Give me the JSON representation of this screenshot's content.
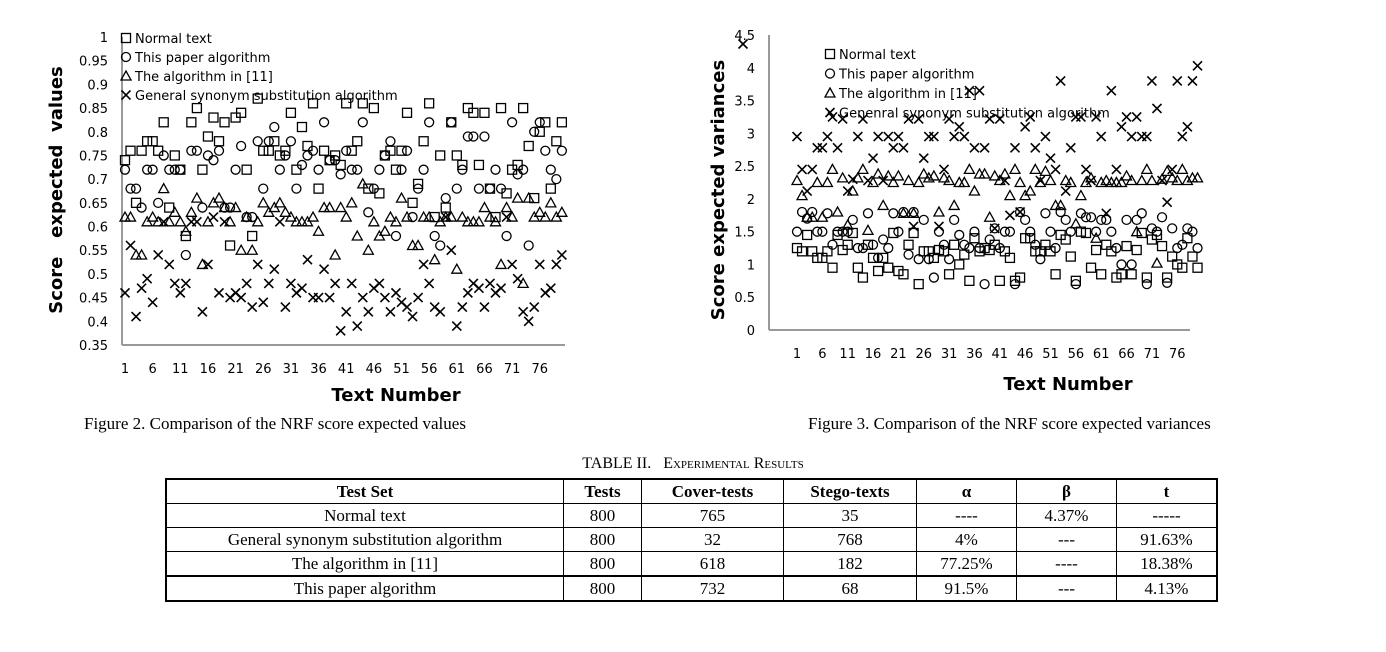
{
  "chart_data": [
    {
      "type": "scatter",
      "xlabel": "Text Number",
      "ylabel": "Score   expected  values",
      "ylim": [
        0.35,
        1
      ],
      "yticks": [
        "0.35",
        "0.4",
        "0.45",
        "0.5",
        "0.55",
        "0.6",
        "0.65",
        "0.7",
        "0.75",
        "0.8",
        "0.85",
        "0.9",
        "0.95",
        "1"
      ],
      "xticks": [
        "1",
        "6",
        "11",
        "16",
        "21",
        "26",
        "31",
        "36",
        "41",
        "46",
        "51",
        "56",
        "61",
        "66",
        "71",
        "76"
      ],
      "legend_position": "top-left",
      "grid": false,
      "series": [
        {
          "name": "Normal text",
          "marker": "square",
          "values": [
            0.74,
            0.76,
            0.65,
            0.76,
            0.78,
            0.78,
            0.76,
            0.82,
            0.64,
            0.75,
            0.72,
            0.58,
            0.82,
            0.85,
            0.72,
            0.79,
            0.83,
            0.78,
            0.82,
            0.56,
            0.83,
            0.84,
            0.72,
            0.58,
            0.87,
            0.76,
            0.76,
            0.78,
            0.75,
            0.76,
            0.84,
            0.72,
            0.81,
            0.77,
            0.86,
            0.68,
            0.76,
            0.74,
            0.75,
            0.73,
            0.86,
            0.76,
            0.78,
            0.86,
            0.68,
            0.85,
            0.67,
            0.75,
            0.76,
            0.72,
            0.76,
            0.84,
            0.65,
            0.69,
            0.78,
            0.86,
            0.62,
            0.75,
            0.64,
            0.82,
            0.75,
            0.73,
            0.85,
            0.84,
            0.73,
            0.84,
            0.68,
            0.62,
            0.85,
            0.67,
            0.72,
            0.73,
            0.85,
            0.77,
            0.66,
            0.8,
            0.82,
            0.68,
            0.78,
            0.82
          ]
        },
        {
          "name": "This paper algorithm",
          "marker": "circle",
          "values": [
            0.72,
            0.68,
            0.68,
            0.64,
            0.72,
            0.72,
            0.65,
            0.75,
            0.72,
            0.72,
            0.72,
            0.54,
            0.76,
            0.76,
            0.64,
            0.75,
            0.74,
            0.76,
            0.64,
            0.64,
            0.72,
            0.77,
            0.62,
            0.62,
            0.78,
            0.68,
            0.78,
            0.81,
            0.72,
            0.75,
            0.78,
            0.68,
            0.73,
            0.75,
            0.76,
            0.72,
            0.82,
            0.74,
            0.74,
            0.71,
            0.76,
            0.72,
            0.72,
            0.82,
            0.63,
            0.68,
            0.72,
            0.75,
            0.78,
            0.58,
            0.72,
            0.76,
            0.62,
            0.68,
            0.72,
            0.82,
            0.58,
            0.56,
            0.66,
            0.82,
            0.68,
            0.72,
            0.79,
            0.79,
            0.68,
            0.79,
            0.68,
            0.72,
            0.68,
            0.58,
            0.82,
            0.71,
            0.72,
            0.56,
            0.8,
            0.82,
            0.76,
            0.72,
            0.7,
            0.76
          ]
        },
        {
          "name": "The algorithm in [11]",
          "marker": "triangle",
          "values": [
            0.62,
            0.62,
            0.54,
            0.54,
            0.61,
            0.62,
            0.61,
            0.68,
            0.61,
            0.63,
            0.61,
            0.59,
            0.63,
            0.66,
            0.52,
            0.61,
            0.65,
            0.66,
            0.64,
            0.61,
            0.64,
            0.55,
            0.62,
            0.55,
            0.61,
            0.65,
            0.63,
            0.64,
            0.65,
            0.63,
            0.62,
            0.61,
            0.61,
            0.61,
            0.62,
            0.59,
            0.64,
            0.64,
            0.54,
            0.64,
            0.62,
            0.65,
            0.58,
            0.69,
            0.55,
            0.61,
            0.58,
            0.59,
            0.62,
            0.61,
            0.66,
            0.62,
            0.56,
            0.56,
            0.62,
            0.62,
            0.53,
            0.61,
            0.62,
            0.62,
            0.51,
            0.62,
            0.61,
            0.61,
            0.61,
            0.64,
            0.62,
            0.61,
            0.52,
            0.64,
            0.62,
            0.66,
            0.48,
            0.66,
            0.62,
            0.63,
            0.62,
            0.65,
            0.62,
            0.63
          ]
        },
        {
          "name": "General synonym substitution algorithm",
          "marker": "x",
          "values": [
            0.46,
            0.56,
            0.41,
            0.47,
            0.49,
            0.44,
            0.54,
            0.61,
            0.52,
            0.48,
            0.46,
            0.48,
            0.61,
            0.61,
            0.42,
            0.52,
            0.62,
            0.46,
            0.61,
            0.45,
            0.46,
            0.45,
            0.48,
            0.43,
            0.52,
            0.44,
            0.48,
            0.51,
            0.61,
            0.43,
            0.48,
            0.46,
            0.47,
            0.53,
            0.45,
            0.45,
            0.51,
            0.45,
            0.48,
            0.38,
            0.42,
            0.48,
            0.39,
            0.45,
            0.42,
            0.47,
            0.48,
            0.45,
            0.42,
            0.46,
            0.44,
            0.43,
            0.41,
            0.45,
            0.52,
            0.48,
            0.43,
            0.42,
            0.62,
            0.55,
            0.39,
            0.43,
            0.46,
            0.48,
            0.47,
            0.43,
            0.48,
            0.46,
            0.47,
            0.62,
            0.52,
            0.49,
            0.42,
            0.4,
            0.43,
            0.52,
            0.46,
            0.47,
            0.52,
            0.54
          ]
        }
      ]
    },
    {
      "type": "scatter",
      "xlabel": "Text Number",
      "ylabel": "Score expected variances",
      "ylim": [
        0,
        4.5
      ],
      "yticks": [
        "0",
        "0.5",
        "1",
        "1.5",
        "2",
        "2.5",
        "3",
        "3.5",
        "4",
        "4.5"
      ],
      "xticks": [
        "1",
        "6",
        "11",
        "16",
        "21",
        "26",
        "31",
        "36",
        "41",
        "46",
        "51",
        "56",
        "61",
        "66",
        "71",
        "76"
      ],
      "legend_position": "top-left",
      "grid": false,
      "series": [
        {
          "name": "Normal text",
          "marker": "square",
          "values": [
            1.25,
            1.2,
            1.45,
            1.2,
            1.1,
            1.1,
            1.2,
            0.95,
            1.45,
            1.22,
            1.3,
            1.48,
            0.95,
            0.8,
            1.3,
            1.1,
            0.9,
            1.1,
            0.95,
            1.48,
            0.9,
            0.85,
            1.3,
            1.48,
            0.7,
            1.2,
            1.2,
            1.1,
            1.22,
            1.2,
            0.85,
            1.3,
            1.0,
            1.15,
            0.75,
            1.4,
            1.2,
            1.25,
            1.22,
            1.3,
            0.75,
            1.2,
            1.1,
            0.75,
            0.8,
            1.4,
            1.4,
            1.2,
            1.2,
            1.3,
            1.2,
            0.85,
            1.45,
            1.38,
            1.12,
            0.75,
            1.5,
            1.48,
            0.95,
            1.22,
            0.85,
            1.3,
            1.2,
            0.8,
            0.85,
            1.28,
            0.85,
            1.22,
            1.48,
            0.8,
            1.38,
            1.45,
            1.28,
            0.8,
            1.12,
            1.0,
            0.95,
            1.4,
            1.12,
            0.95
          ]
        },
        {
          "name": "This paper algorithm",
          "marker": "circle",
          "values": [
            1.5,
            1.8,
            1.7,
            1.8,
            1.5,
            1.5,
            1.78,
            1.3,
            1.5,
            1.5,
            1.5,
            1.68,
            1.25,
            1.25,
            1.78,
            1.3,
            1.1,
            1.38,
            1.25,
            1.78,
            1.5,
            1.8,
            1.15,
            1.8,
            1.08,
            1.68,
            1.08,
            0.8,
            1.5,
            1.3,
            1.08,
            1.68,
            1.45,
            1.3,
            1.25,
            1.5,
            1.25,
            0.7,
            1.38,
            1.55,
            1.25,
            1.5,
            1.5,
            0.7,
            1.8,
            1.68,
            1.5,
            1.3,
            1.08,
            1.78,
            1.5,
            1.25,
            1.8,
            1.68,
            1.5,
            0.7,
            1.78,
            1.72,
            1.72,
            1.5,
            1.68,
            1.68,
            1.5,
            1.25,
            1.0,
            1.68,
            1.0,
            1.68,
            1.78,
            0.7,
            1.55,
            1.5,
            1.72,
            0.72,
            1.55,
            1.25,
            1.3,
            1.55,
            1.5,
            1.25
          ]
        },
        {
          "name": "The algorithm in [11]",
          "marker": "triangle",
          "values": [
            2.28,
            2.05,
            1.72,
            1.72,
            2.25,
            1.72,
            2.25,
            2.45,
            1.8,
            2.32,
            1.6,
            2.12,
            2.32,
            2.45,
            1.52,
            2.25,
            2.38,
            1.9,
            2.35,
            2.25,
            2.35,
            1.78,
            2.28,
            1.78,
            2.25,
            2.38,
            2.32,
            2.35,
            1.8,
            2.32,
            2.28,
            1.9,
            2.25,
            2.25,
            2.45,
            2.12,
            2.38,
            2.38,
            1.72,
            2.35,
            2.28,
            2.38,
            2.05,
            2.45,
            2.25,
            2.05,
            2.12,
            2.45,
            2.25,
            2.42,
            2.28,
            1.9,
            1.9,
            2.28,
            2.25,
            1.62,
            2.05,
            2.25,
            2.32,
            1.4,
            2.25,
            2.28,
            2.25,
            2.25,
            2.25,
            2.35,
            2.28,
            1.5,
            2.28,
            2.45,
            2.28,
            1.02,
            2.3,
            2.42,
            2.32,
            2.28,
            2.45,
            2.28,
            2.32,
            2.32
          ]
        },
        {
          "name": "Genenral synonym substitution algorithm",
          "marker": "x",
          "values": [
            2.95,
            2.45,
            2.12,
            2.45,
            2.78,
            2.78,
            2.95,
            3.25,
            2.78,
            3.22,
            2.12,
            2.3,
            2.95,
            3.22,
            2.28,
            2.62,
            2.95,
            2.28,
            2.95,
            2.78,
            2.95,
            2.78,
            3.22,
            1.58,
            3.22,
            2.62,
            2.95,
            2.95,
            1.58,
            2.45,
            3.22,
            2.95,
            3.1,
            2.95,
            3.65,
            2.78,
            3.65,
            2.78,
            3.22,
            1.55,
            3.22,
            2.28,
            1.75,
            2.78,
            1.8,
            3.1,
            3.25,
            2.78,
            2.28,
            2.95,
            2.62,
            2.45,
            3.8,
            2.12,
            2.78,
            3.25,
            3.25,
            2.45,
            2.28,
            3.25,
            2.95,
            1.78,
            3.65,
            2.45,
            3.1,
            3.25,
            2.95,
            3.25,
            2.95,
            2.95,
            3.8,
            3.38,
            2.28,
            1.95,
            2.45,
            3.8,
            2.95,
            3.1,
            3.8,
            4.03
          ]
        }
      ]
    }
  ],
  "captions": {
    "fig2": "Figure 2. Comparison of the NRF score expected values",
    "fig3": "Figure 3.  Comparison of the NRF score expected variances"
  },
  "table": {
    "title_prefix": "TABLE II.",
    "title": "Experimental  Results",
    "headers": [
      "Test Set",
      "Tests",
      "Cover-tests",
      "Stego-texts",
      "α",
      "β",
      "t"
    ],
    "rows": [
      [
        "Normal text",
        "800",
        "765",
        "35",
        "----",
        "4.37%",
        "-----"
      ],
      [
        "General synonym substitution algorithm",
        "800",
        "32",
        "768",
        "4%",
        "---",
        "91.63%"
      ],
      [
        "The algorithm in [11]",
        "800",
        "618",
        "182",
        "77.25%",
        "----",
        "18.38%"
      ],
      [
        "This paper algorithm",
        "800",
        "732",
        "68",
        "91.5%",
        "---",
        "4.13%"
      ]
    ]
  }
}
